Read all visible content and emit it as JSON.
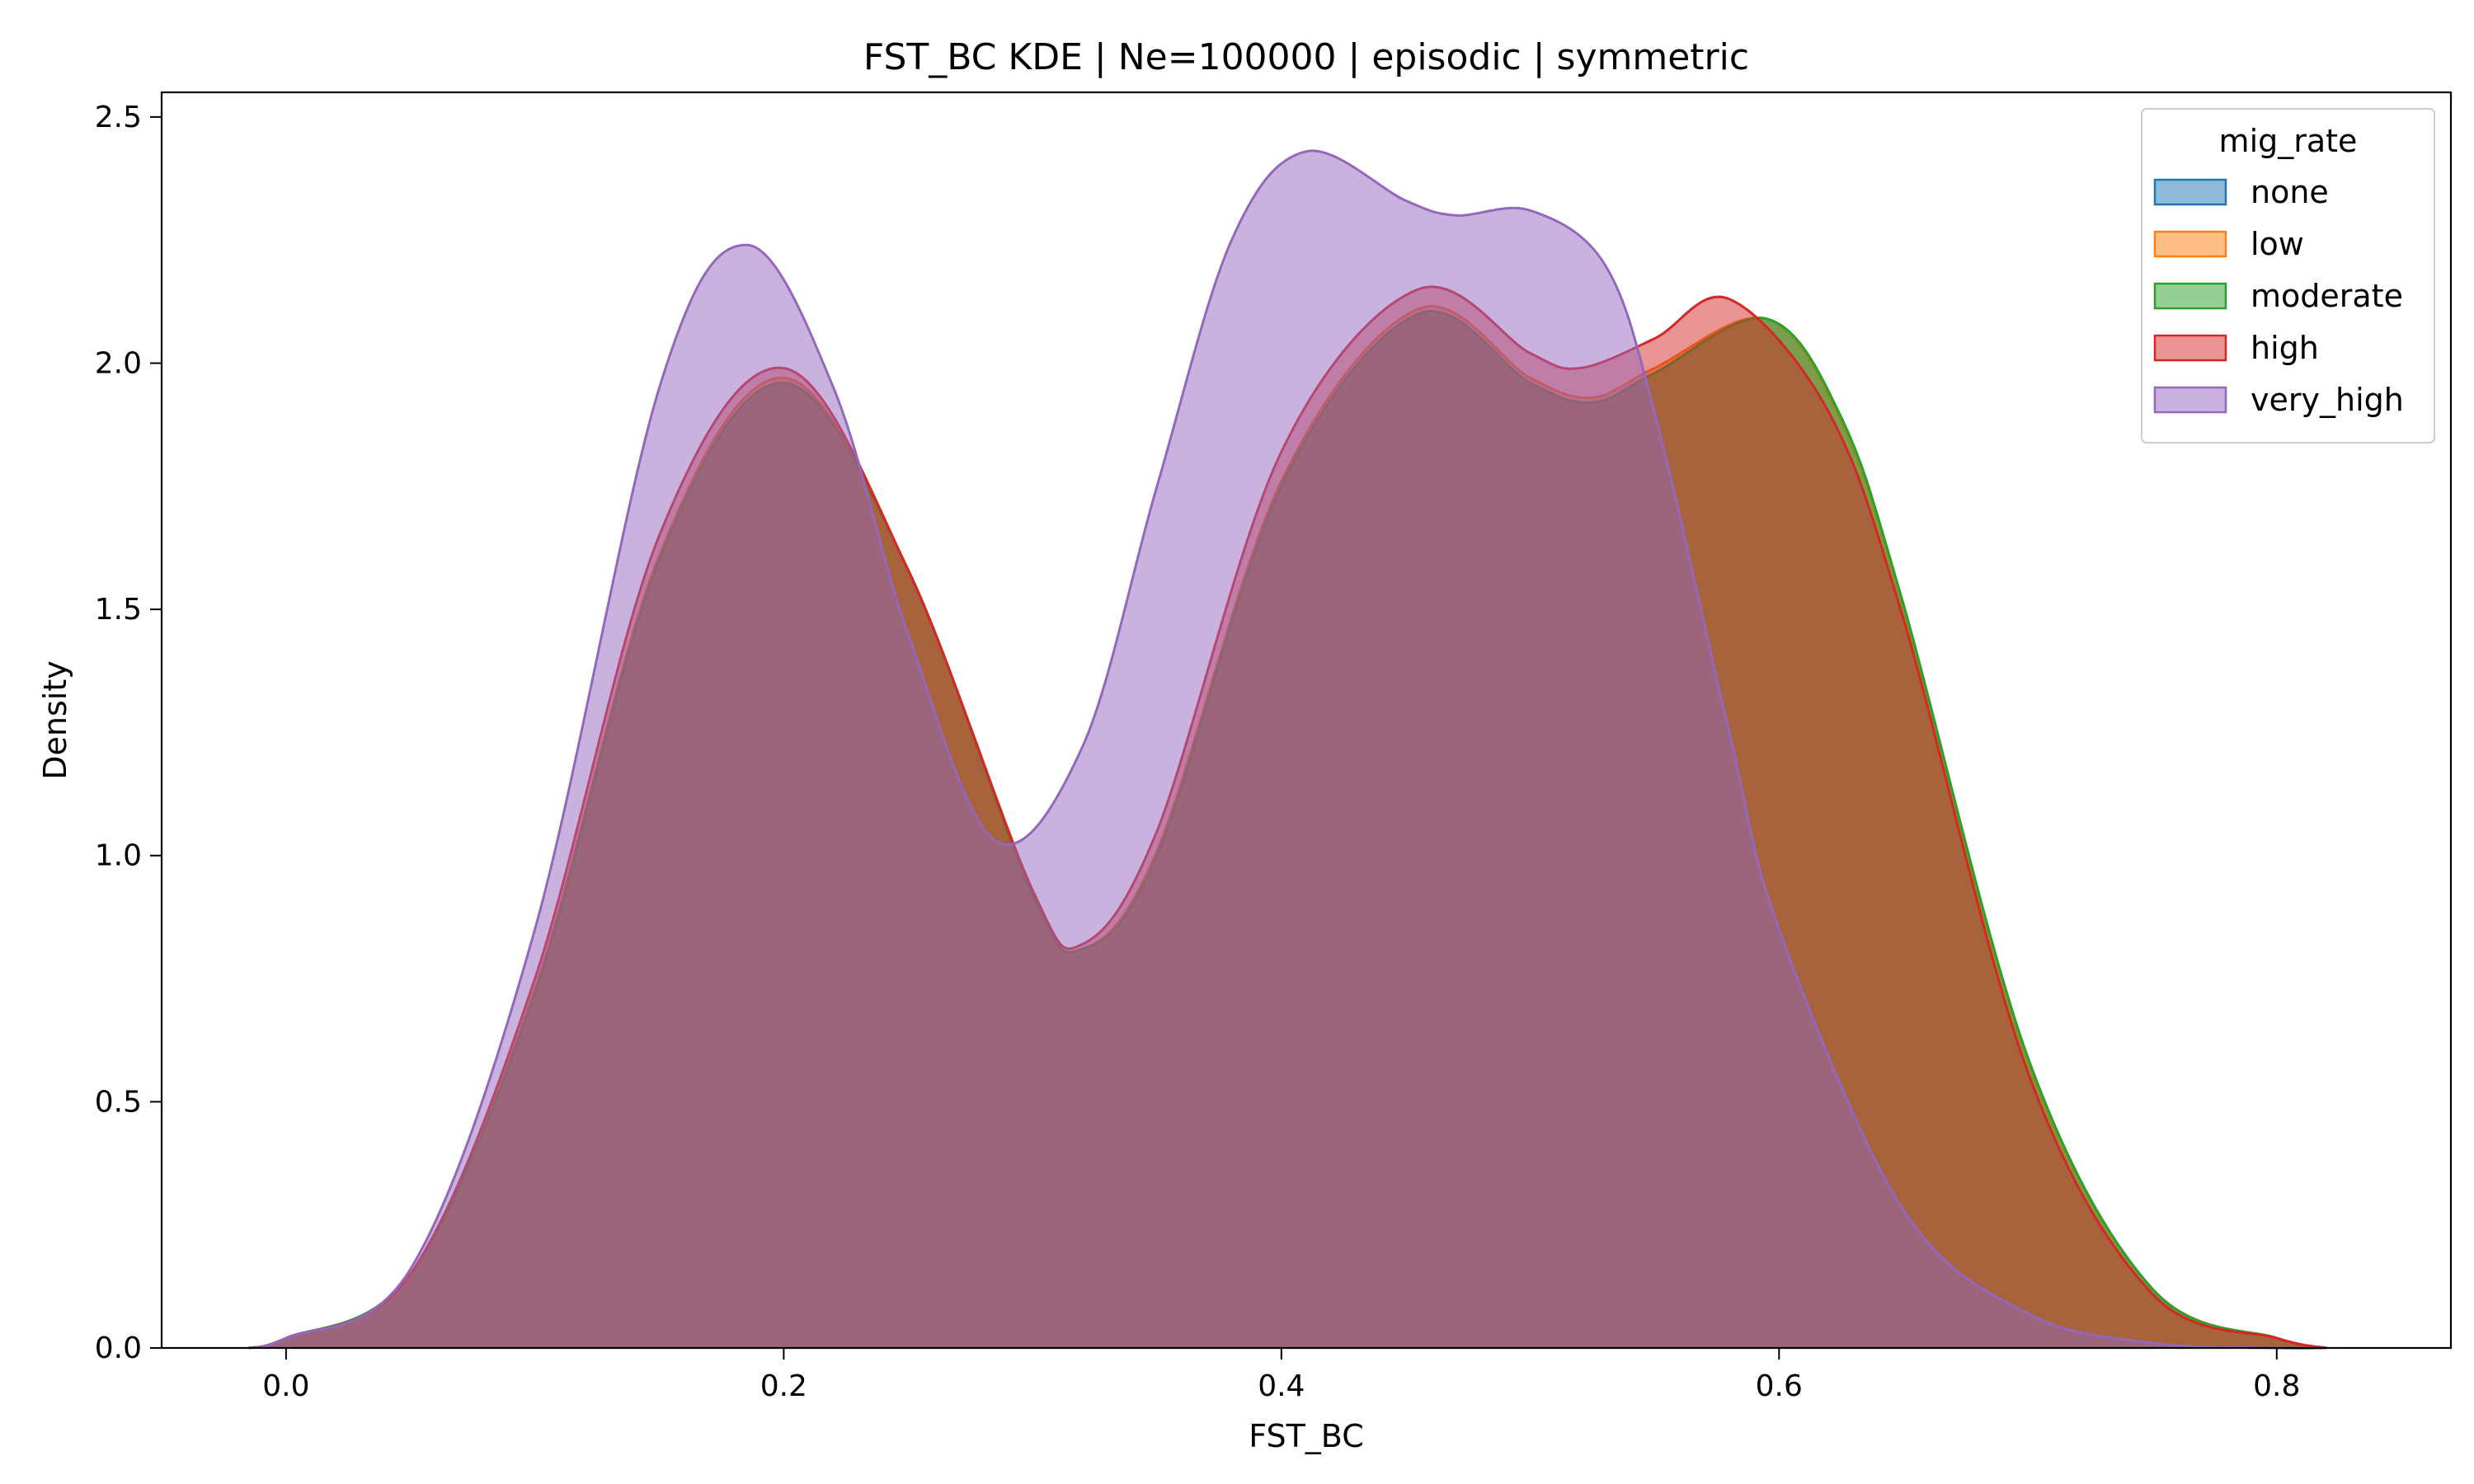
{
  "chart_data": {
    "type": "area",
    "title": "FST_BC KDE | Ne=100000 | episodic | symmetric",
    "xlabel": "FST_BC",
    "ylabel": "Density",
    "xlim": [
      -0.05,
      0.87
    ],
    "ylim": [
      0,
      2.55
    ],
    "xticks": [
      "0.0",
      "0.2",
      "0.4",
      "0.6",
      "0.8"
    ],
    "yticks": [
      "0.0",
      "0.5",
      "1.0",
      "1.5",
      "2.0",
      "2.5"
    ],
    "grid": false,
    "legend_title": "mig_rate",
    "legend_position": "top-right",
    "series": [
      {
        "name": "none",
        "color": "#1f77b4",
        "x": [
          -0.015,
          0.0,
          0.05,
          0.1,
          0.15,
          0.2,
          0.25,
          0.3,
          0.32,
          0.35,
          0.4,
          0.455,
          0.5,
          0.525,
          0.55,
          0.595,
          0.625,
          0.65,
          0.7,
          0.75,
          0.8,
          0.82
        ],
        "y": [
          0.0,
          0.02,
          0.15,
          0.72,
          1.6,
          1.96,
          1.58,
          0.92,
          0.81,
          1.0,
          1.75,
          2.1,
          1.96,
          1.92,
          1.98,
          2.09,
          1.88,
          1.5,
          0.58,
          0.12,
          0.02,
          0.0
        ]
      },
      {
        "name": "low",
        "color": "#ff7f0e",
        "x": [
          -0.015,
          0.0,
          0.05,
          0.1,
          0.15,
          0.2,
          0.25,
          0.3,
          0.32,
          0.35,
          0.4,
          0.455,
          0.5,
          0.525,
          0.55,
          0.595,
          0.625,
          0.65,
          0.7,
          0.75,
          0.8,
          0.82
        ],
        "y": [
          0.0,
          0.02,
          0.15,
          0.73,
          1.61,
          1.97,
          1.58,
          0.92,
          0.81,
          1.01,
          1.76,
          2.11,
          1.97,
          1.93,
          1.99,
          2.09,
          1.88,
          1.5,
          0.58,
          0.12,
          0.02,
          0.0
        ]
      },
      {
        "name": "moderate",
        "color": "#2ca02c",
        "x": [
          -0.015,
          0.0,
          0.05,
          0.1,
          0.15,
          0.2,
          0.25,
          0.3,
          0.32,
          0.35,
          0.4,
          0.455,
          0.5,
          0.525,
          0.55,
          0.595,
          0.625,
          0.65,
          0.7,
          0.75,
          0.8,
          0.82
        ],
        "y": [
          0.0,
          0.02,
          0.15,
          0.72,
          1.6,
          1.96,
          1.58,
          0.92,
          0.81,
          1.0,
          1.75,
          2.1,
          1.96,
          1.92,
          1.98,
          2.09,
          1.89,
          1.51,
          0.59,
          0.12,
          0.02,
          0.0
        ]
      },
      {
        "name": "high",
        "color": "#d62728",
        "x": [
          -0.015,
          0.0,
          0.05,
          0.1,
          0.15,
          0.2,
          0.25,
          0.3,
          0.32,
          0.35,
          0.4,
          0.455,
          0.5,
          0.52,
          0.55,
          0.58,
          0.62,
          0.65,
          0.7,
          0.75,
          0.8,
          0.82
        ],
        "y": [
          0.0,
          0.02,
          0.15,
          0.75,
          1.65,
          1.99,
          1.58,
          0.93,
          0.82,
          1.05,
          1.82,
          2.15,
          2.02,
          1.99,
          2.05,
          2.13,
          1.9,
          1.48,
          0.56,
          0.11,
          0.02,
          0.0
        ]
      },
      {
        "name": "very_high",
        "color": "#9467bd",
        "x": [
          -0.015,
          0.0,
          0.05,
          0.1,
          0.15,
          0.185,
          0.22,
          0.25,
          0.285,
          0.32,
          0.35,
          0.38,
          0.41,
          0.45,
          0.47,
          0.5,
          0.53,
          0.55,
          0.58,
          0.6,
          0.65,
          0.7,
          0.75,
          0.8,
          0.82
        ],
        "y": [
          0.0,
          0.02,
          0.16,
          0.85,
          1.95,
          2.24,
          1.95,
          1.45,
          1.03,
          1.22,
          1.75,
          2.25,
          2.43,
          2.33,
          2.3,
          2.31,
          2.2,
          1.9,
          1.25,
          0.85,
          0.28,
          0.07,
          0.01,
          0.0,
          0.0
        ]
      }
    ]
  }
}
